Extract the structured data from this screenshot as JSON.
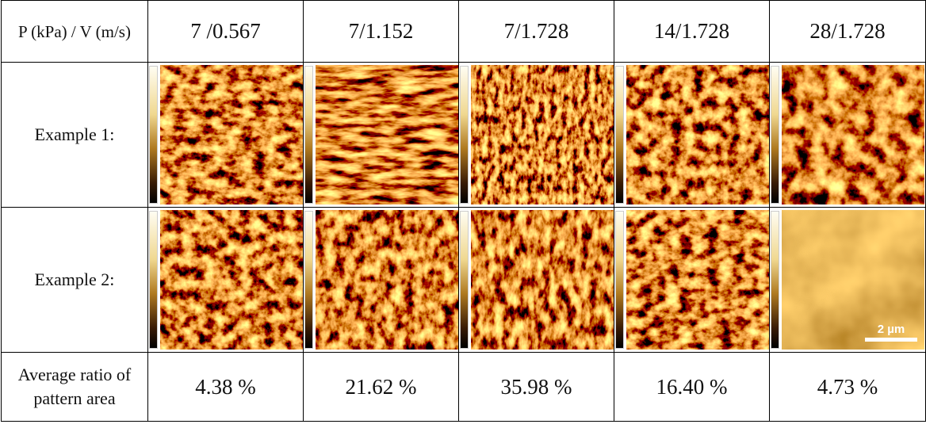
{
  "table": {
    "header": [
      "P (kPa) / V (m/s)",
      "7 /0.567",
      "7/1.152",
      "7/1.728",
      "14/1.728",
      "28/1.728"
    ],
    "rows": [
      [
        "Example 1:"
      ],
      [
        "Example 2:"
      ],
      [
        "Average ratio of pattern area",
        "4.38 %",
        "21.62 %",
        "35.98 %",
        "16.40 %",
        "4.73 %"
      ]
    ]
  },
  "scale_bar": "2 µm"
}
